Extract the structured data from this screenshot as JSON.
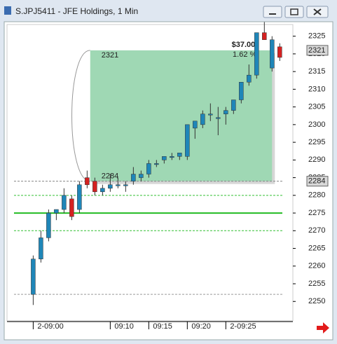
{
  "window": {
    "title": "S.JPJ5411 - JFE Holdings, 1 Min"
  },
  "chart_data": {
    "type": "candlestick",
    "x": [
      0,
      1,
      2,
      3,
      4,
      5,
      6,
      7,
      8,
      9,
      10,
      11,
      12,
      13,
      14,
      15,
      16,
      17,
      18,
      19,
      20,
      21,
      22,
      23,
      24,
      25,
      26,
      27,
      28,
      29,
      30,
      31,
      32
    ],
    "open": [
      2252,
      2262,
      2268,
      2275,
      2276,
      2279,
      2276,
      2285,
      2284,
      2281,
      2282,
      2283,
      2283,
      2284,
      2285,
      2286,
      2289,
      2290,
      2291,
      2291,
      2291,
      2299,
      2300,
      2303,
      2302,
      2303,
      2304,
      2307,
      2312,
      2314,
      2326,
      2316,
      2322
    ],
    "high": [
      2263,
      2270,
      2276,
      2276,
      2282,
      2280,
      2284,
      2287,
      2285,
      2283,
      2286,
      2285,
      2284,
      2288,
      2287,
      2290,
      2290,
      2291,
      2292,
      2292,
      2300,
      2301,
      2304,
      2306,
      2305,
      2305,
      2307,
      2312,
      2317,
      2326,
      2329,
      2325,
      2323
    ],
    "low": [
      2249,
      2261,
      2267,
      2273,
      2275,
      2273,
      2275,
      2282,
      2280,
      2280,
      2281,
      2282,
      2281,
      2283,
      2284,
      2285,
      2288,
      2289,
      2290,
      2290,
      2290,
      2296,
      2299,
      2301,
      2297,
      2300,
      2303,
      2306,
      2311,
      2313,
      2324,
      2315,
      2318
    ],
    "close": [
      2262,
      2268,
      2275,
      2276,
      2280,
      2274,
      2283,
      2283,
      2281,
      2282,
      2283,
      2283,
      2283,
      2286,
      2286,
      2289,
      2289,
      2291,
      2291,
      2292,
      2300,
      2301,
      2303,
      2303,
      2302,
      2304,
      2307,
      2312,
      2314,
      2326,
      2324,
      2324,
      2319
    ],
    "up_color": "#1f86b8",
    "down_color": "#d42121",
    "xlim": [
      -3.4,
      33.7
    ],
    "xticks": [
      {
        "value": 0,
        "label": "2-09:00"
      },
      {
        "value": 10,
        "label": "09:10"
      },
      {
        "value": 15,
        "label": "09:15"
      },
      {
        "value": 20,
        "label": "09:20"
      },
      {
        "value": 25,
        "label": "2-09:25"
      }
    ],
    "ylim": [
      2245.1,
      2328.3
    ],
    "yticks": [
      2250,
      2255,
      2260,
      2265,
      2270,
      2275,
      2280,
      2285,
      2290,
      2295,
      2300,
      2305,
      2310,
      2315,
      2320,
      2325
    ],
    "hlines": [
      {
        "value": 2280,
        "color": "#33c033",
        "style": "dashed"
      },
      {
        "value": 2275,
        "color": "#22bb22",
        "style": "solid"
      },
      {
        "value": 2270,
        "color": "#33c033",
        "style": "dashed"
      },
      {
        "value": 2284,
        "color": "#888888",
        "style": "dashed"
      },
      {
        "value": 2252,
        "color": "#999999",
        "style": "dashed"
      }
    ],
    "price_markers": [
      2321,
      2284
    ],
    "annotation": {
      "x": [
        7.4,
        31
      ],
      "range": [
        2284,
        2321
      ],
      "change_label": "$37.00",
      "percent_label": "1.62 %",
      "color": "#9fd8b4"
    }
  }
}
